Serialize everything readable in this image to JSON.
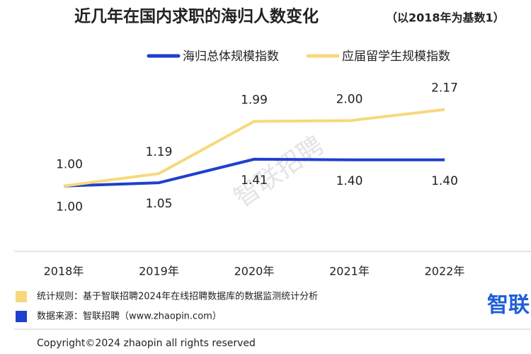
{
  "chart_data": {
    "type": "line",
    "title": "近几年在国内求职的海归人数变化",
    "subtitle": "（以2018年为基数1）",
    "categories": [
      "2018年",
      "2019年",
      "2020年",
      "2021年",
      "2022年"
    ],
    "series": [
      {
        "name": "海归总体规模指数",
        "color": "#1f3fce",
        "values": [
          1,
          1.05,
          1.41,
          1.4,
          1.4
        ],
        "value_labels": [
          "1.00",
          "1.05",
          "1.41",
          "1.40",
          "1.40"
        ],
        "label_side": "below"
      },
      {
        "name": "应届留学生规模指数",
        "color": "#f6d97c",
        "values": [
          1,
          1.19,
          1.99,
          2,
          2.17
        ],
        "value_labels": [
          "1.00",
          "1.19",
          "1.99",
          "2.00",
          "2.17"
        ],
        "label_side": "above"
      }
    ],
    "ylim": [
      0,
      2.8
    ],
    "watermark": "智联招聘",
    "notes": [
      {
        "text": "统计规则：基于智联招聘2024年在线招聘数据库的数据监测统计分析",
        "color": "#f6d97c"
      },
      {
        "text": "数据来源：智联招聘（www.zhaopin.com）",
        "color": "#1f3fce"
      }
    ],
    "logo": "智联",
    "copyright": "Copyright©2024 zhaopin all rights reserved"
  }
}
